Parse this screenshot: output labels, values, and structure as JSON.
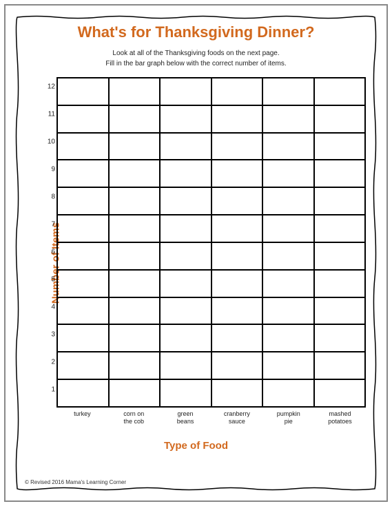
{
  "worksheet": {
    "title": "What's for Thanksgiving Dinner?",
    "instruction_line1": "Look at all of the Thanksgiving foods on the next page.",
    "instruction_line2": "Fill in the bar graph below with the correct number of items.",
    "footer": "© Revised 2016   Mama's Learning Corner"
  },
  "chart": {
    "type": "bar",
    "y_axis_label": "Number of Items",
    "x_axis_label": "Type of Food",
    "ylim": [
      0,
      12
    ],
    "ytick_step": 1,
    "y_ticks": [
      "12",
      "11",
      "10",
      "9",
      "8",
      "7",
      "6",
      "5",
      "4",
      "3",
      "2",
      "1"
    ],
    "categories": [
      "turkey",
      "corn on\nthe cob",
      "green\nbeans",
      "cranberry\nsauce",
      "pumpkin\npie",
      "mashed\npotatoes"
    ],
    "values": [
      null,
      null,
      null,
      null,
      null,
      null
    ],
    "grid_rows": 12,
    "grid_cols": 6,
    "grid_color": "#000000",
    "background_color": "#ffffff",
    "accent_color": "#d2691e",
    "title_fontsize": 22,
    "axis_label_fontsize": 15,
    "tick_fontsize": 10,
    "category_fontsize": 9,
    "border_color": "#000000"
  }
}
